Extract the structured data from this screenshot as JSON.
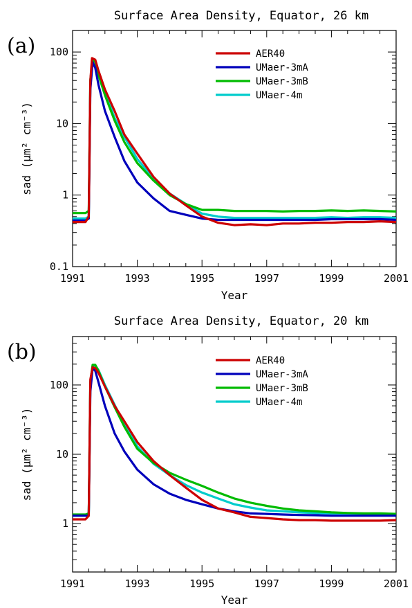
{
  "chart_data": [
    {
      "type": "line",
      "panel_label": "(a)",
      "title": "Surface Area Density, Equator, 26 km",
      "xlabel": "Year",
      "ylabel": "sad (μm² cm⁻³)",
      "log_y": true,
      "xlim": [
        1991,
        2001
      ],
      "ylim": [
        0.1,
        200
      ],
      "xticks": [
        "1991",
        "1993",
        "1995",
        "1997",
        "1999",
        "2001"
      ],
      "yticks": [
        "0.1",
        "1",
        "10",
        "100"
      ],
      "legend_position": "top-right",
      "series": [
        {
          "name": "AER40",
          "color": "#cc0000",
          "x": [
            1991.0,
            1991.4,
            1991.5,
            1991.55,
            1991.6,
            1991.7,
            1991.8,
            1992.0,
            1992.3,
            1992.6,
            1993.0,
            1993.5,
            1994.0,
            1994.5,
            1995.0,
            1995.5,
            1996.0,
            1996.5,
            1997.0,
            1997.5,
            1998.0,
            1998.5,
            1999.0,
            1999.5,
            2000.0,
            2000.5,
            2001.0
          ],
          "y": [
            0.42,
            0.42,
            0.5,
            40,
            82,
            78,
            55,
            30,
            15,
            7,
            3.8,
            1.8,
            1.05,
            0.72,
            0.5,
            0.41,
            0.38,
            0.39,
            0.38,
            0.4,
            0.4,
            0.41,
            0.41,
            0.42,
            0.42,
            0.43,
            0.42
          ]
        },
        {
          "name": "UMaer-3mA",
          "color": "#0000bb",
          "x": [
            1991.0,
            1991.4,
            1991.5,
            1991.55,
            1991.62,
            1991.7,
            1991.8,
            1992.0,
            1992.3,
            1992.6,
            1993.0,
            1993.5,
            1994.0,
            1994.5,
            1995.0,
            1995.5,
            1996.0,
            1996.5,
            1997.0,
            1997.5,
            1998.0,
            1998.5,
            1999.0,
            1999.5,
            2000.0,
            2000.5,
            2001.0
          ],
          "y": [
            0.44,
            0.44,
            0.47,
            30,
            72,
            60,
            35,
            15,
            6.5,
            3,
            1.5,
            0.9,
            0.6,
            0.53,
            0.47,
            0.45,
            0.45,
            0.45,
            0.45,
            0.45,
            0.45,
            0.45,
            0.46,
            0.46,
            0.46,
            0.46,
            0.45
          ]
        },
        {
          "name": "UMaer-3mB",
          "color": "#00bb00",
          "x": [
            1991.0,
            1991.4,
            1991.5,
            1991.55,
            1991.62,
            1991.7,
            1991.8,
            1992.0,
            1992.3,
            1992.6,
            1993.0,
            1993.5,
            1994.0,
            1994.5,
            1995.0,
            1995.5,
            1996.0,
            1996.5,
            1997.0,
            1997.5,
            1998.0,
            1998.5,
            1999.0,
            1999.5,
            2000.0,
            2000.5,
            2001.0
          ],
          "y": [
            0.56,
            0.56,
            0.6,
            40,
            78,
            72,
            48,
            25,
            11,
            5.5,
            2.8,
            1.6,
            1.0,
            0.75,
            0.62,
            0.62,
            0.6,
            0.6,
            0.6,
            0.59,
            0.6,
            0.6,
            0.61,
            0.6,
            0.61,
            0.6,
            0.59
          ]
        },
        {
          "name": "UMaer-4m",
          "color": "#00cccc",
          "x": [
            1991.0,
            1991.4,
            1991.5,
            1991.55,
            1991.62,
            1991.7,
            1991.8,
            1992.0,
            1992.3,
            1992.6,
            1993.0,
            1993.5,
            1994.0,
            1994.5,
            1995.0,
            1995.5,
            1996.0,
            1996.5,
            1997.0,
            1997.5,
            1998.0,
            1998.5,
            1999.0,
            1999.5,
            2000.0,
            2000.5,
            2001.0
          ],
          "y": [
            0.47,
            0.47,
            0.5,
            40,
            80,
            75,
            52,
            28,
            12,
            6.5,
            3.2,
            1.7,
            1.05,
            0.75,
            0.55,
            0.5,
            0.48,
            0.48,
            0.48,
            0.48,
            0.48,
            0.48,
            0.49,
            0.48,
            0.49,
            0.49,
            0.48
          ]
        }
      ]
    },
    {
      "type": "line",
      "panel_label": "(b)",
      "title": "Surface Area Density, Equator, 20 km",
      "xlabel": "Year",
      "ylabel": "sad (μm² cm⁻³)",
      "log_y": true,
      "xlim": [
        1991,
        2001
      ],
      "ylim": [
        0.2,
        500
      ],
      "xticks": [
        "1991",
        "1993",
        "1995",
        "1997",
        "1999",
        "2001"
      ],
      "yticks": [
        "1",
        "10",
        "100"
      ],
      "legend_position": "top-right",
      "series": [
        {
          "name": "AER40",
          "color": "#cc0000",
          "x": [
            1991.0,
            1991.4,
            1991.5,
            1991.55,
            1991.62,
            1991.7,
            1991.8,
            1992.0,
            1992.3,
            1992.6,
            1993.0,
            1993.5,
            1994.0,
            1994.5,
            1995.0,
            1995.5,
            1996.0,
            1996.5,
            1997.0,
            1997.5,
            1998.0,
            1998.5,
            1999.0,
            1999.5,
            2000.0,
            2000.5,
            2001.0
          ],
          "y": [
            1.15,
            1.15,
            1.3,
            120,
            180,
            175,
            150,
            95,
            50,
            30,
            15,
            8,
            5,
            3.3,
            2.2,
            1.65,
            1.45,
            1.25,
            1.2,
            1.15,
            1.12,
            1.12,
            1.1,
            1.1,
            1.1,
            1.1,
            1.12
          ]
        },
        {
          "name": "UMaer-3mA",
          "color": "#0000bb",
          "x": [
            1991.0,
            1991.4,
            1991.5,
            1991.55,
            1991.62,
            1991.7,
            1991.8,
            1992.0,
            1992.3,
            1992.6,
            1993.0,
            1993.5,
            1994.0,
            1994.5,
            1995.0,
            1995.5,
            1996.0,
            1996.5,
            1997.0,
            1997.5,
            1998.0,
            1998.5,
            1999.0,
            1999.5,
            2000.0,
            2000.5,
            2001.0
          ],
          "y": [
            1.3,
            1.3,
            1.3,
            80,
            175,
            160,
            110,
            50,
            20,
            11,
            6,
            3.7,
            2.7,
            2.2,
            1.9,
            1.65,
            1.5,
            1.4,
            1.38,
            1.35,
            1.33,
            1.32,
            1.3,
            1.3,
            1.3,
            1.3,
            1.3
          ]
        },
        {
          "name": "UMaer-3mB",
          "color": "#00bb00",
          "x": [
            1991.0,
            1991.4,
            1991.5,
            1991.55,
            1991.62,
            1991.7,
            1991.8,
            1992.0,
            1992.3,
            1992.6,
            1993.0,
            1993.5,
            1994.0,
            1994.5,
            1995.0,
            1995.5,
            1996.0,
            1996.5,
            1997.0,
            1997.5,
            1998.0,
            1998.5,
            1999.0,
            1999.5,
            2000.0,
            2000.5,
            2001.0
          ],
          "y": [
            1.35,
            1.35,
            1.4,
            110,
            195,
            195,
            160,
            95,
            48,
            25,
            12,
            7.5,
            5.4,
            4.3,
            3.5,
            2.8,
            2.3,
            2.0,
            1.8,
            1.65,
            1.55,
            1.5,
            1.45,
            1.42,
            1.4,
            1.4,
            1.38
          ]
        },
        {
          "name": "UMaer-4m",
          "color": "#00cccc",
          "x": [
            1991.0,
            1991.4,
            1991.5,
            1991.55,
            1991.62,
            1991.7,
            1991.8,
            1992.0,
            1992.3,
            1992.6,
            1993.0,
            1993.5,
            1994.0,
            1994.5,
            1995.0,
            1995.5,
            1996.0,
            1996.5,
            1997.0,
            1997.5,
            1998.0,
            1998.5,
            1999.0,
            1999.5,
            2000.0,
            2000.5,
            2001.0
          ],
          "y": [
            1.3,
            1.3,
            1.35,
            110,
            190,
            190,
            165,
            100,
            52,
            27,
            13,
            7.3,
            5,
            3.6,
            2.8,
            2.3,
            1.9,
            1.7,
            1.55,
            1.5,
            1.45,
            1.42,
            1.4,
            1.4,
            1.38,
            1.38,
            1.35
          ]
        }
      ]
    }
  ]
}
